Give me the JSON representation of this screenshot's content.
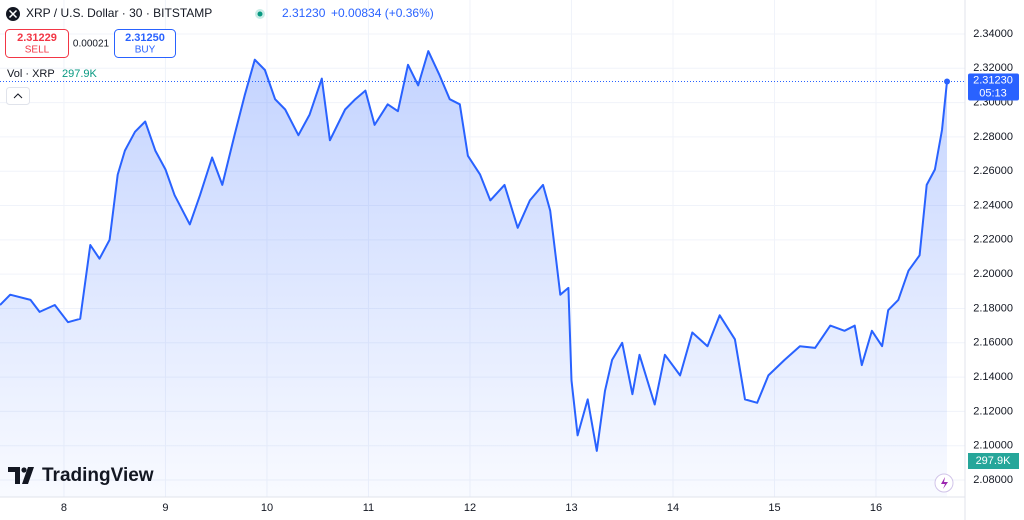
{
  "header": {
    "symbol": "XRP / U.S. Dollar · 30 · BITSTAMP",
    "price": "2.31230",
    "change": "+0.00834 (+0.36%)",
    "sell_price": "2.31229",
    "sell": "SELL",
    "spread": "0.00021",
    "buy_price": "2.31250",
    "buy": "BUY",
    "volume_label": "Vol · XRP",
    "volume": "297.9K",
    "countdown": "05:13",
    "logo": "TradingView"
  },
  "chart_data": {
    "type": "area",
    "x": [
      7.37,
      7.47,
      7.67,
      7.76,
      7.91,
      8.04,
      8.16,
      8.26,
      8.35,
      8.45,
      8.53,
      8.6,
      8.7,
      8.8,
      8.9,
      9.0,
      9.09,
      9.24,
      9.34,
      9.46,
      9.56,
      9.68,
      9.78,
      9.88,
      9.98,
      10.08,
      10.18,
      10.31,
      10.42,
      10.54,
      10.62,
      10.77,
      10.87,
      10.97,
      11.06,
      11.19,
      11.29,
      11.39,
      11.49,
      11.59,
      11.7,
      11.8,
      11.9,
      11.98,
      12.1,
      12.2,
      12.34,
      12.47,
      12.59,
      12.72,
      12.79,
      12.85,
      12.89,
      12.97,
      13.0,
      13.06,
      13.16,
      13.25,
      13.33,
      13.4,
      13.5,
      13.6,
      13.67,
      13.82,
      13.92,
      14.07,
      14.19,
      14.34,
      14.46,
      14.61,
      14.71,
      14.83,
      14.94,
      15.1,
      15.25,
      15.4,
      15.55,
      15.69,
      15.79,
      15.86,
      15.96,
      16.06,
      16.12,
      16.22,
      16.32,
      16.43,
      16.5,
      16.58,
      16.65,
      16.7
    ],
    "series": [
      {
        "color": "#2962ff",
        "values": [
          2.182,
          2.188,
          2.185,
          2.178,
          2.182,
          2.172,
          2.174,
          2.217,
          2.209,
          2.22,
          2.258,
          2.272,
          2.283,
          2.289,
          2.272,
          2.261,
          2.246,
          2.229,
          2.246,
          2.268,
          2.252,
          2.281,
          2.304,
          2.325,
          2.319,
          2.302,
          2.296,
          2.281,
          2.293,
          2.314,
          2.278,
          2.296,
          2.302,
          2.307,
          2.287,
          2.299,
          2.295,
          2.322,
          2.31,
          2.33,
          2.316,
          2.302,
          2.299,
          2.269,
          2.258,
          2.243,
          2.252,
          2.227,
          2.243,
          2.252,
          2.237,
          2.208,
          2.188,
          2.192,
          2.138,
          2.106,
          2.127,
          2.097,
          2.132,
          2.15,
          2.16,
          2.13,
          2.153,
          2.124,
          2.153,
          2.141,
          2.166,
          2.158,
          2.176,
          2.162,
          2.127,
          2.125,
          2.141,
          2.15,
          2.158,
          2.157,
          2.17,
          2.167,
          2.17,
          2.147,
          2.167,
          2.158,
          2.179,
          2.185,
          2.202,
          2.211,
          2.252,
          2.261,
          2.284,
          2.3123
        ]
      }
    ],
    "xlim": [
      7.37,
      16.877
    ],
    "xticks": [
      8,
      9,
      10,
      11,
      12,
      13,
      14,
      15,
      16
    ],
    "ylim": [
      2.0701,
      2.3598
    ],
    "yticks": [
      {
        "value": 2.08,
        "label": "2.08000"
      },
      {
        "value": 2.1,
        "label": "2.10000"
      },
      {
        "value": 2.12,
        "label": "2.12000"
      },
      {
        "value": 2.14,
        "label": "2.14000"
      },
      {
        "value": 2.16,
        "label": "2.16000"
      },
      {
        "value": 2.18,
        "label": "2.18000"
      },
      {
        "value": 2.2,
        "label": "2.20000"
      },
      {
        "value": 2.22,
        "label": "2.22000"
      },
      {
        "value": 2.24,
        "label": "2.24000"
      },
      {
        "value": 2.26,
        "label": "2.26000"
      },
      {
        "value": 2.28,
        "label": "2.28000"
      },
      {
        "value": 2.3,
        "label": "2.30000"
      },
      {
        "value": 2.32,
        "label": "2.32000"
      },
      {
        "value": 2.34,
        "label": "2.34000"
      }
    ],
    "grid": true
  }
}
